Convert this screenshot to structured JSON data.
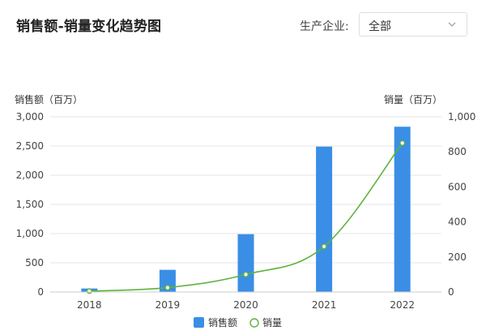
{
  "header": {
    "title": "销售额-销量变化趋势图",
    "filter_label": "生产企业:",
    "filter_value": "全部"
  },
  "colors": {
    "bar": "#3a8ee6",
    "line": "#5db33e",
    "grid": "#e6e6e6",
    "axis": "#cccccc"
  },
  "chart_data": {
    "type": "bar",
    "categories": [
      "2018",
      "2019",
      "2020",
      "2021",
      "2022"
    ],
    "y_left": {
      "label": "销售额（百万）",
      "ylim": [
        0,
        3000
      ],
      "ticks": [
        "0",
        "500",
        "1,000",
        "1,500",
        "2,000",
        "2,500",
        "3,000"
      ],
      "tick_values": [
        0,
        500,
        1000,
        1500,
        2000,
        2500,
        3000
      ]
    },
    "y_right": {
      "label": "销量（百万）",
      "ylim": [
        0,
        1000
      ],
      "ticks": [
        "0",
        "200",
        "400",
        "600",
        "800",
        "1,000"
      ],
      "tick_values": [
        0,
        200,
        400,
        600,
        800,
        1000
      ]
    },
    "series": [
      {
        "name": "销售额",
        "type": "bar",
        "axis": "left",
        "values": [
          60,
          380,
          990,
          2490,
          2830
        ]
      },
      {
        "name": "销量",
        "type": "line",
        "axis": "right",
        "values": [
          5,
          25,
          100,
          260,
          850
        ]
      }
    ],
    "legend_position": "bottom",
    "grid": true
  }
}
